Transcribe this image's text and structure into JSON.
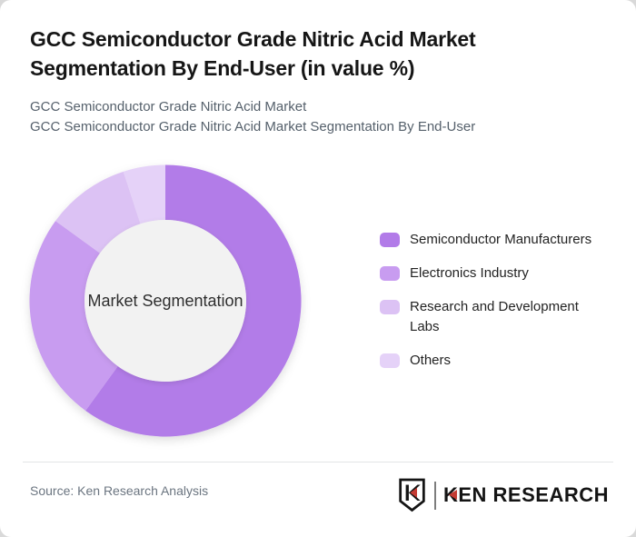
{
  "page": {
    "title": "GCC Semiconductor Grade Nitric Acid Market Segmentation By End-User (in value %)",
    "subtitle_line1": "GCC Semiconductor Grade Nitric Acid Market",
    "subtitle_line2": "GCC Semiconductor Grade Nitric Acid Market Segmentation By End-User"
  },
  "chart_data": {
    "type": "pie",
    "variant": "donut",
    "title": "GCC Semiconductor Grade Nitric Acid Market Segmentation By End-User (in value %)",
    "unit": "% of market value",
    "center_label": "Market Segmentation",
    "start_angle_deg": 0,
    "direction": "clockwise",
    "legend_position": "right",
    "segments": [
      {
        "label": "Semiconductor Manufacturers",
        "value": 60,
        "color": "#b27be8"
      },
      {
        "label": "Electronics Industry",
        "value": 25,
        "color": "#c89cf0"
      },
      {
        "label": "Research and Development Labs",
        "value": 10,
        "color": "#dcc2f4"
      },
      {
        "label": "Others",
        "value": 5,
        "color": "#e5d2f8"
      }
    ]
  },
  "footer": {
    "source": "Source: Ken Research Analysis",
    "logo_text": "KEN RESEARCH"
  },
  "theme": {
    "page_bg": "#d9d9d9",
    "card_bg": "#ffffff",
    "title_color": "#161616",
    "subtitle_color": "#55606b",
    "legend_text_color": "#232323",
    "center_circle_color": "#f2f2f2",
    "center_text_color": "#2e2e2e",
    "divider_color": "#e2e4e6",
    "source_color": "#6b7580",
    "logo_red": "#c43b33",
    "logo_black": "#141414",
    "logo_separator": "#7d7d7d"
  }
}
